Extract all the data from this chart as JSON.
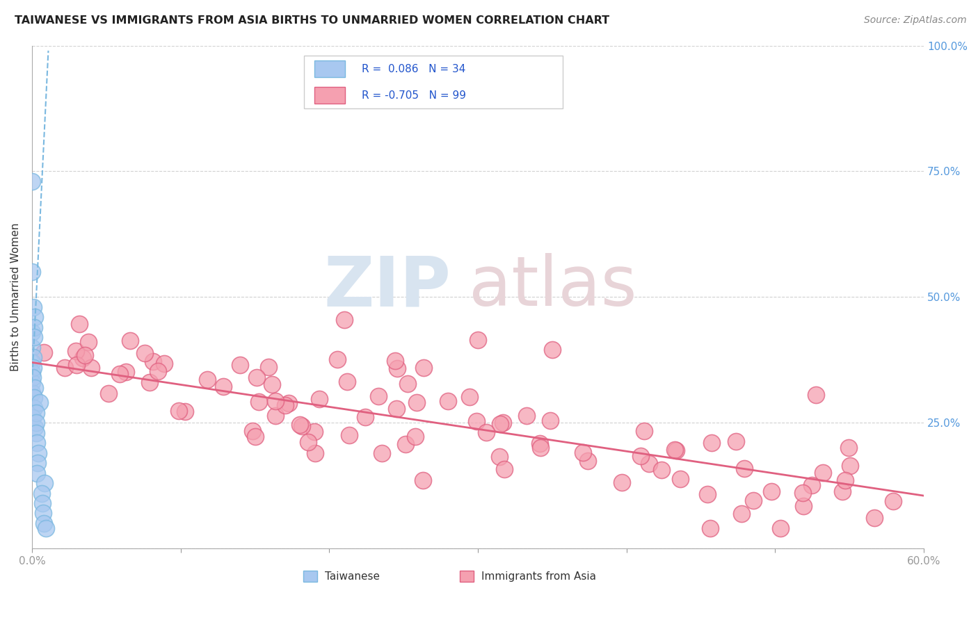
{
  "title": "TAIWANESE VS IMMIGRANTS FROM ASIA BIRTHS TO UNMARRIED WOMEN CORRELATION CHART",
  "source": "Source: ZipAtlas.com",
  "ylabel": "Births to Unmarried Women",
  "legend_label1": "Taiwanese",
  "legend_label2": "Immigrants from Asia",
  "R1": 0.086,
  "N1": 34,
  "R2": -0.705,
  "N2": 99,
  "xlim": [
    0.0,
    0.6
  ],
  "ylim": [
    0.0,
    1.0
  ],
  "color_taiwanese": "#a8c8f0",
  "color_immigrants": "#f5a0b0",
  "color_line_taiwanese": "#7ab8e0",
  "color_line_immigrants": "#e06080",
  "color_grid": "#cccccc",
  "color_right_ticks": "#5599dd",
  "watermark_color_zip": "#d8e4f0",
  "watermark_color_atlas": "#e8d4d8"
}
